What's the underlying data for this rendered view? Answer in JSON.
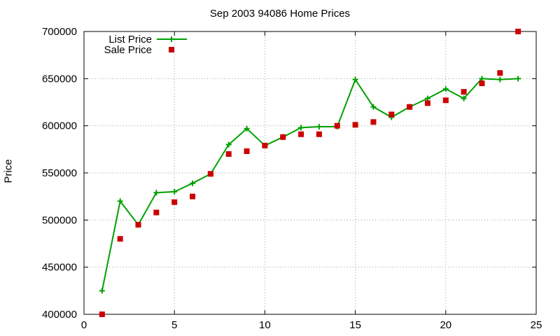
{
  "chart_data": {
    "type": "line",
    "title": "Sep 2003 94086 Home Prices",
    "xlabel": "",
    "ylabel": "Price",
    "xlim": [
      0,
      25
    ],
    "ylim": [
      400000,
      700000
    ],
    "xticks": [
      0,
      5,
      10,
      15,
      20,
      25
    ],
    "yticks": [
      400000,
      450000,
      500000,
      550000,
      600000,
      650000,
      700000
    ],
    "xtick_labels": [
      "0",
      "5",
      "10",
      "15",
      "20",
      "25"
    ],
    "ytick_labels": [
      "400000",
      "450000",
      "500000",
      "550000",
      "600000",
      "650000",
      "700000"
    ],
    "grid": true,
    "legend_position": "top-left",
    "series": [
      {
        "name": "List Price",
        "style": "line-with-plus-markers",
        "color": "#00a000",
        "x": [
          1,
          2,
          3,
          4,
          5,
          6,
          7,
          8,
          9,
          10,
          11,
          12,
          13,
          14,
          15,
          16,
          17,
          18,
          19,
          20,
          21,
          22,
          23,
          24
        ],
        "values": [
          425000,
          520000,
          495000,
          529000,
          530000,
          539000,
          549000,
          580000,
          597000,
          579000,
          588000,
          598000,
          599000,
          599000,
          649000,
          620000,
          609000,
          620000,
          629000,
          639000,
          629000,
          650000,
          649000,
          650000
        ]
      },
      {
        "name": "Sale Price",
        "style": "square-markers",
        "color": "#cc0000",
        "x": [
          1,
          2,
          3,
          4,
          5,
          6,
          7,
          8,
          9,
          10,
          11,
          12,
          13,
          14,
          15,
          16,
          17,
          18,
          19,
          20,
          21,
          22,
          23,
          24
        ],
        "values": [
          400000,
          480000,
          495000,
          508000,
          519000,
          525000,
          549000,
          570000,
          573000,
          579000,
          588000,
          591000,
          591000,
          600000,
          601000,
          604000,
          612000,
          620000,
          624000,
          627000,
          636000,
          645000,
          656000,
          700000
        ]
      }
    ]
  }
}
